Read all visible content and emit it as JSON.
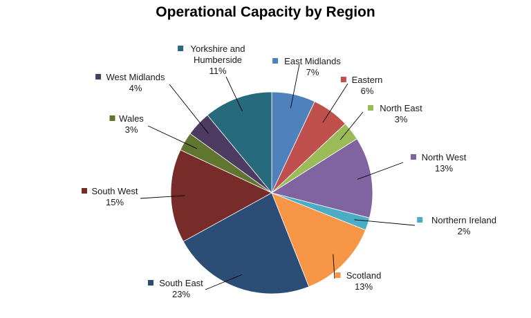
{
  "chart_data": {
    "type": "pie",
    "title": "Operational Capacity by Region",
    "start_angle_deg": 0,
    "direction": "clockwise",
    "slices": [
      {
        "label": "East Midlands",
        "value": 7,
        "pct_label": "7%",
        "color": "#4F81BD"
      },
      {
        "label": "Eastern",
        "value": 6,
        "pct_label": "6%",
        "color": "#C0504D"
      },
      {
        "label": "North East",
        "value": 3,
        "pct_label": "3%",
        "color": "#9BBB59"
      },
      {
        "label": "North West",
        "value": 13,
        "pct_label": "13%",
        "color": "#8064A2"
      },
      {
        "label": "Northern Ireland",
        "value": 2,
        "pct_label": "2%",
        "color": "#4BACC6"
      },
      {
        "label": "Scotland",
        "value": 13,
        "pct_label": "13%",
        "color": "#F79646"
      },
      {
        "label": "South East",
        "value": 23,
        "pct_label": "23%",
        "color": "#2C4D75"
      },
      {
        "label": "South West",
        "value": 15,
        "pct_label": "15%",
        "color": "#772C2A"
      },
      {
        "label": "Wales",
        "value": 3,
        "pct_label": "3%",
        "color": "#5F7530"
      },
      {
        "label": "West Midlands",
        "value": 4,
        "pct_label": "4%",
        "color": "#4D3B62"
      },
      {
        "label": "Yorkshire and Humberside",
        "label_lines": [
          "Yorkshire and",
          "Humberside"
        ],
        "value": 11,
        "pct_label": "11%",
        "color": "#276A7C"
      }
    ]
  }
}
